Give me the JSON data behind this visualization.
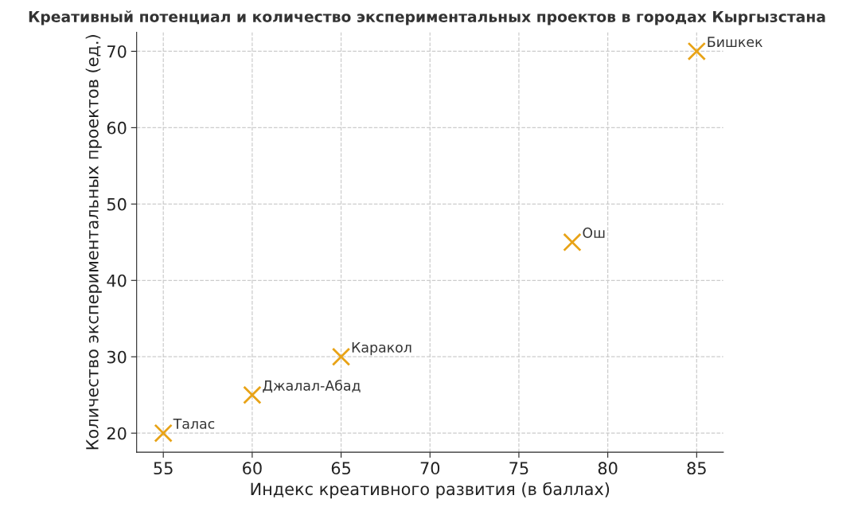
{
  "chart_data": {
    "type": "scatter",
    "title": "Креативный потенциал и количество экспериментальных проектов в городах Кыргызстана",
    "xlabel": "Индекс креативного развития (в баллах)",
    "ylabel": "Количество экспериментальных проектов (ед.)",
    "x": [
      55,
      60,
      65,
      78,
      85
    ],
    "values": [
      20,
      25,
      30,
      45,
      70
    ],
    "color": "#e8a317",
    "marker": "cross",
    "xlim": [
      53.5,
      86.5
    ],
    "ylim": [
      17.5,
      72.5
    ],
    "xticks": [
      55,
      60,
      65,
      70,
      75,
      80,
      85
    ],
    "yticks": [
      20,
      30,
      40,
      50,
      60,
      70
    ],
    "grid": true,
    "legend": false,
    "annotations": [
      {
        "text": "Талас",
        "x": 55,
        "y": 20
      },
      {
        "text": "Джалал-Абад",
        "x": 60,
        "y": 25
      },
      {
        "text": "Каракол",
        "x": 65,
        "y": 30
      },
      {
        "text": "Ош",
        "x": 78,
        "y": 45
      },
      {
        "text": "Бишкек",
        "x": 85,
        "y": 70
      }
    ]
  }
}
